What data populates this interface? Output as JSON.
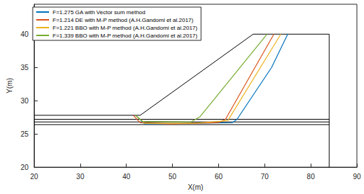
{
  "chart_data": {
    "type": "line",
    "x_label": "X(m)",
    "y_label": "Y(m)",
    "xlim": [
      20,
      90
    ],
    "xticks": [
      20,
      30,
      40,
      50,
      60,
      70,
      80,
      90
    ],
    "ylim": [
      20,
      44.5
    ],
    "yticks": [
      20,
      25,
      30,
      35,
      40
    ],
    "grid": false,
    "legend": "upper left",
    "boundary_lines": {
      "color": "#000000",
      "lines": [
        {
          "x": [
            20,
            43,
            67.5,
            84,
            84
          ],
          "y": [
            27.8,
            27.8,
            40,
            40,
            20
          ]
        },
        {
          "x": [
            20,
            84
          ],
          "y": [
            27.2,
            27.2
          ]
        },
        {
          "x": [
            20,
            84
          ],
          "y": [
            26.8,
            26.8
          ]
        },
        {
          "x": [
            20,
            84
          ],
          "y": [
            26.4,
            26.4
          ]
        }
      ]
    },
    "series": [
      {
        "name": "F=1.275 GA with Vector sum method",
        "color": "#0072BD",
        "x": [
          42,
          44,
          63,
          64,
          71.5,
          75
        ],
        "y": [
          27.8,
          26.5,
          26.7,
          27.2,
          35,
          40
        ]
      },
      {
        "name": "F=1.214 DE with M-P method (A.H.Gandomi et al.2017)",
        "color": "#D95319",
        "x": [
          41.5,
          43,
          50,
          60,
          61.5,
          72
        ],
        "y": [
          27.8,
          26.7,
          26.5,
          26.7,
          27.2,
          40
        ]
      },
      {
        "name": "F=1.221 BBO with M-P method (A.H.Gandomi et al.2017)",
        "color": "#EDB120",
        "x": [
          42,
          44,
          55,
          62,
          73.5
        ],
        "y": [
          27.8,
          26.6,
          26.6,
          27.0,
          40
        ]
      },
      {
        "name": "F=1.339 BBO with M-P method (A.H.Gandomi et al.2017)",
        "color": "#77AC30",
        "x": [
          42,
          43.5,
          54,
          56,
          70.5
        ],
        "y": [
          27.8,
          26.9,
          26.8,
          27.6,
          40
        ]
      }
    ]
  }
}
